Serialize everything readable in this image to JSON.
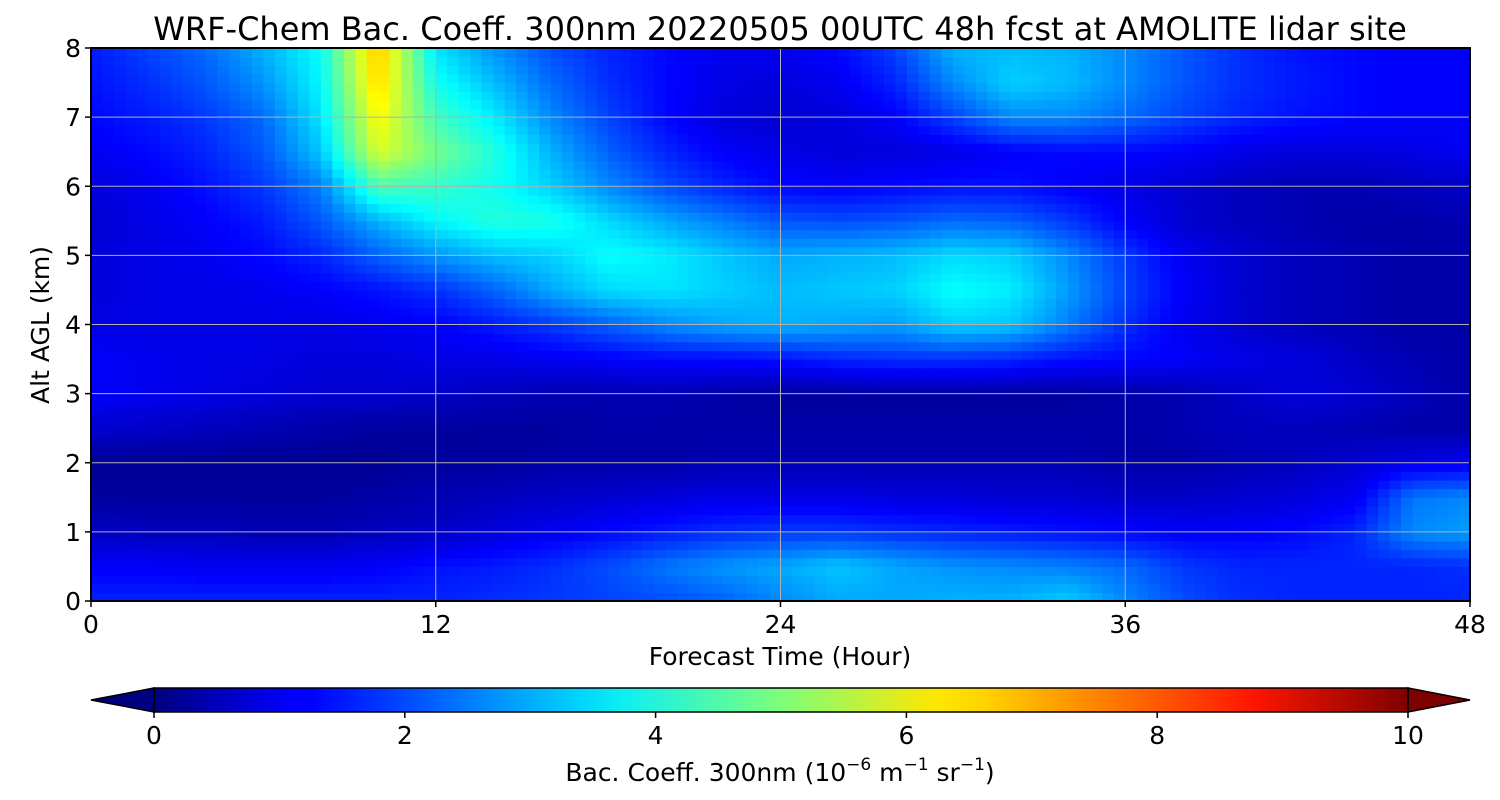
{
  "chart_data": {
    "type": "heatmap",
    "title": "WRF-Chem Bac. Coeff. 300nm  20220505 00UTC 48h fcst at AMOLITE lidar site",
    "xlabel": "Forecast Time (Hour)",
    "ylabel": "Alt AGL (km)",
    "xlim": [
      0,
      48
    ],
    "ylim": [
      0,
      8
    ],
    "xticks": [
      "0",
      "12",
      "24",
      "36",
      "48"
    ],
    "yticks": [
      "0",
      "1",
      "2",
      "3",
      "4",
      "5",
      "6",
      "7",
      "8"
    ],
    "grid": true,
    "colorscale": "jet",
    "colorbar": {
      "label_main": "Bac. Coeff. 300nm  (10",
      "label_exp1": "−6",
      "label_mid": " m",
      "label_exp2": "−1",
      "label_mid2": " sr",
      "label_exp3": "−1",
      "label_end": ")",
      "range": [
        0,
        10
      ],
      "extend": "both",
      "ticks": [
        "0",
        "2",
        "4",
        "6",
        "8",
        "10"
      ],
      "orientation": "horizontal"
    },
    "x": [
      0,
      2,
      4,
      6,
      8,
      10,
      12,
      14,
      16,
      18,
      20,
      22,
      24,
      26,
      28,
      30,
      32,
      34,
      36,
      38,
      40,
      42,
      44,
      46,
      48
    ],
    "y": [
      0,
      0.5,
      1,
      1.5,
      2,
      2.5,
      3,
      3.5,
      4,
      4.5,
      5,
      5.5,
      6,
      6.5,
      7,
      7.5,
      8
    ],
    "z": [
      [
        1.6,
        1.6,
        1.6,
        1.6,
        1.6,
        1.6,
        1.6,
        1.7,
        1.8,
        1.9,
        2.0,
        2.2,
        2.6,
        2.9,
        2.9,
        3.0,
        3.0,
        3.3,
        2.6,
        2.0,
        1.7,
        1.6,
        1.6,
        1.6,
        1.6
      ],
      [
        1.2,
        1.2,
        1.1,
        1.1,
        1.1,
        1.2,
        1.4,
        1.5,
        1.7,
        2.0,
        2.4,
        2.7,
        2.9,
        3.2,
        2.9,
        2.7,
        2.6,
        2.5,
        2.3,
        1.8,
        1.6,
        1.6,
        1.6,
        1.6,
        1.7
      ],
      [
        0.7,
        0.6,
        0.6,
        0.5,
        0.5,
        0.6,
        0.7,
        0.9,
        1.1,
        1.3,
        1.5,
        1.7,
        1.8,
        1.8,
        1.7,
        1.6,
        1.5,
        1.4,
        1.3,
        1.2,
        1.2,
        1.3,
        1.6,
        2.6,
        2.8
      ],
      [
        0.3,
        0.3,
        0.3,
        0.3,
        0.3,
        0.4,
        0.5,
        0.6,
        0.7,
        0.8,
        0.9,
        1.0,
        1.0,
        1.0,
        0.9,
        0.9,
        0.8,
        0.8,
        0.7,
        0.7,
        0.8,
        0.9,
        1.1,
        2.4,
        2.6
      ],
      [
        0.2,
        0.2,
        0.2,
        0.2,
        0.2,
        0.2,
        0.3,
        0.3,
        0.4,
        0.4,
        0.4,
        0.5,
        0.5,
        0.5,
        0.5,
        0.5,
        0.5,
        0.5,
        0.4,
        0.4,
        0.5,
        0.6,
        0.8,
        1.0,
        1.1
      ],
      [
        0.8,
        0.7,
        0.6,
        0.5,
        0.4,
        0.3,
        0.3,
        0.3,
        0.3,
        0.4,
        0.4,
        0.4,
        0.4,
        0.4,
        0.4,
        0.4,
        0.4,
        0.4,
        0.4,
        0.5,
        0.6,
        0.6,
        0.5,
        0.4,
        0.4
      ],
      [
        1.2,
        1.1,
        1.0,
        0.9,
        0.8,
        0.8,
        0.7,
        0.6,
        0.5,
        0.5,
        0.5,
        0.4,
        0.3,
        0.3,
        0.3,
        0.3,
        0.3,
        0.3,
        0.4,
        0.5,
        0.7,
        0.9,
        0.8,
        0.6,
        0.4
      ],
      [
        1.2,
        1.1,
        1.0,
        1.0,
        0.9,
        0.9,
        1.0,
        1.0,
        1.1,
        1.2,
        1.3,
        1.3,
        1.4,
        1.6,
        1.7,
        1.7,
        1.6,
        1.4,
        1.3,
        1.2,
        1.0,
        0.9,
        0.7,
        0.5,
        0.4
      ],
      [
        1.0,
        1.0,
        1.0,
        1.0,
        1.0,
        1.1,
        1.2,
        1.5,
        1.8,
        2.2,
        2.6,
        2.9,
        3.0,
        2.9,
        2.8,
        3.3,
        3.2,
        2.5,
        1.7,
        1.1,
        0.8,
        0.6,
        0.5,
        0.4,
        0.4
      ],
      [
        0.9,
        1.0,
        1.0,
        1.1,
        1.2,
        1.4,
        1.7,
        2.2,
        2.9,
        3.4,
        3.5,
        3.3,
        3.1,
        3.2,
        3.3,
        3.8,
        3.6,
        2.8,
        1.9,
        1.2,
        0.8,
        0.6,
        0.5,
        0.4,
        0.4
      ],
      [
        0.9,
        1.0,
        1.1,
        1.3,
        1.6,
        2.2,
        2.7,
        3.1,
        3.3,
        3.8,
        3.6,
        3.2,
        2.9,
        3.0,
        3.1,
        3.4,
        3.3,
        2.6,
        1.8,
        1.1,
        0.8,
        0.6,
        0.5,
        0.4,
        0.4
      ],
      [
        0.8,
        1.0,
        1.2,
        1.5,
        2.1,
        3.0,
        3.7,
        4.1,
        4.0,
        3.4,
        2.9,
        2.5,
        2.1,
        2.0,
        2.1,
        2.3,
        2.2,
        1.8,
        1.2,
        0.8,
        0.6,
        0.5,
        0.4,
        0.4,
        0.5
      ],
      [
        0.9,
        1.1,
        1.4,
        1.8,
        2.5,
        4.5,
        4.3,
        3.9,
        3.3,
        2.6,
        2.0,
        1.6,
        1.3,
        1.2,
        1.3,
        1.4,
        1.4,
        1.2,
        1.0,
        0.8,
        0.6,
        0.5,
        0.5,
        0.6,
        0.7
      ],
      [
        1.1,
        1.3,
        1.6,
        2.1,
        3.2,
        5.9,
        4.9,
        4.1,
        3.0,
        2.2,
        1.6,
        1.2,
        1.0,
        0.9,
        0.9,
        1.0,
        1.2,
        1.3,
        1.3,
        1.2,
        1.0,
        0.9,
        0.9,
        1.0,
        1.1
      ],
      [
        1.3,
        1.5,
        1.8,
        2.3,
        3.5,
        6.3,
        4.4,
        3.6,
        2.6,
        1.9,
        1.3,
        0.9,
        0.8,
        0.9,
        1.2,
        1.9,
        2.6,
        2.6,
        2.3,
        1.9,
        1.6,
        1.4,
        1.3,
        1.2,
        1.2
      ],
      [
        1.4,
        1.7,
        2.1,
        2.7,
        3.7,
        6.7,
        3.9,
        3.1,
        2.3,
        1.7,
        1.3,
        1.0,
        0.9,
        1.1,
        1.6,
        2.6,
        3.3,
        3.1,
        2.6,
        2.1,
        1.7,
        1.5,
        1.3,
        1.2,
        1.2
      ],
      [
        1.5,
        1.9,
        2.3,
        3.0,
        3.8,
        6.9,
        3.5,
        2.7,
        2.0,
        1.6,
        1.3,
        1.1,
        1.1,
        1.3,
        1.9,
        3.0,
        3.1,
        3.0,
        2.6,
        2.1,
        1.7,
        1.4,
        1.3,
        1.2,
        1.2
      ]
    ]
  }
}
